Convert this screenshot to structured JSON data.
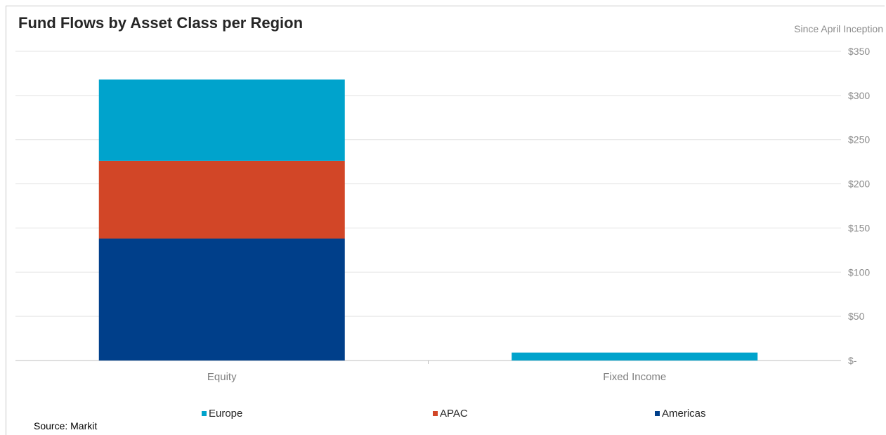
{
  "chart_data": {
    "type": "bar",
    "stacked": true,
    "title": "Fund Flows by Asset Class per Region",
    "subtitle": "Since April Inception",
    "source": "Source: Markit",
    "categories": [
      "Equity",
      "Fixed Income"
    ],
    "series": [
      {
        "name": "Americas",
        "color": "#003f8a",
        "values": [
          138,
          0
        ]
      },
      {
        "name": "APAC",
        "color": "#d24627",
        "values": [
          88,
          0
        ]
      },
      {
        "name": "Europe",
        "color": "#00a3cc",
        "values": [
          92,
          9
        ]
      }
    ],
    "legend_order": [
      "Europe",
      "APAC",
      "Americas"
    ],
    "y_ticks": [
      {
        "value": 0,
        "label": "$-"
      },
      {
        "value": 50,
        "label": "$50"
      },
      {
        "value": 100,
        "label": "$100"
      },
      {
        "value": 150,
        "label": "$150"
      },
      {
        "value": 200,
        "label": "$200"
      },
      {
        "value": 250,
        "label": "$250"
      },
      {
        "value": 300,
        "label": "$300"
      },
      {
        "value": 350,
        "label": "$350"
      }
    ],
    "ylim": [
      0,
      350
    ],
    "y_axis_position": "right",
    "grid": true,
    "legend_position": "bottom"
  }
}
